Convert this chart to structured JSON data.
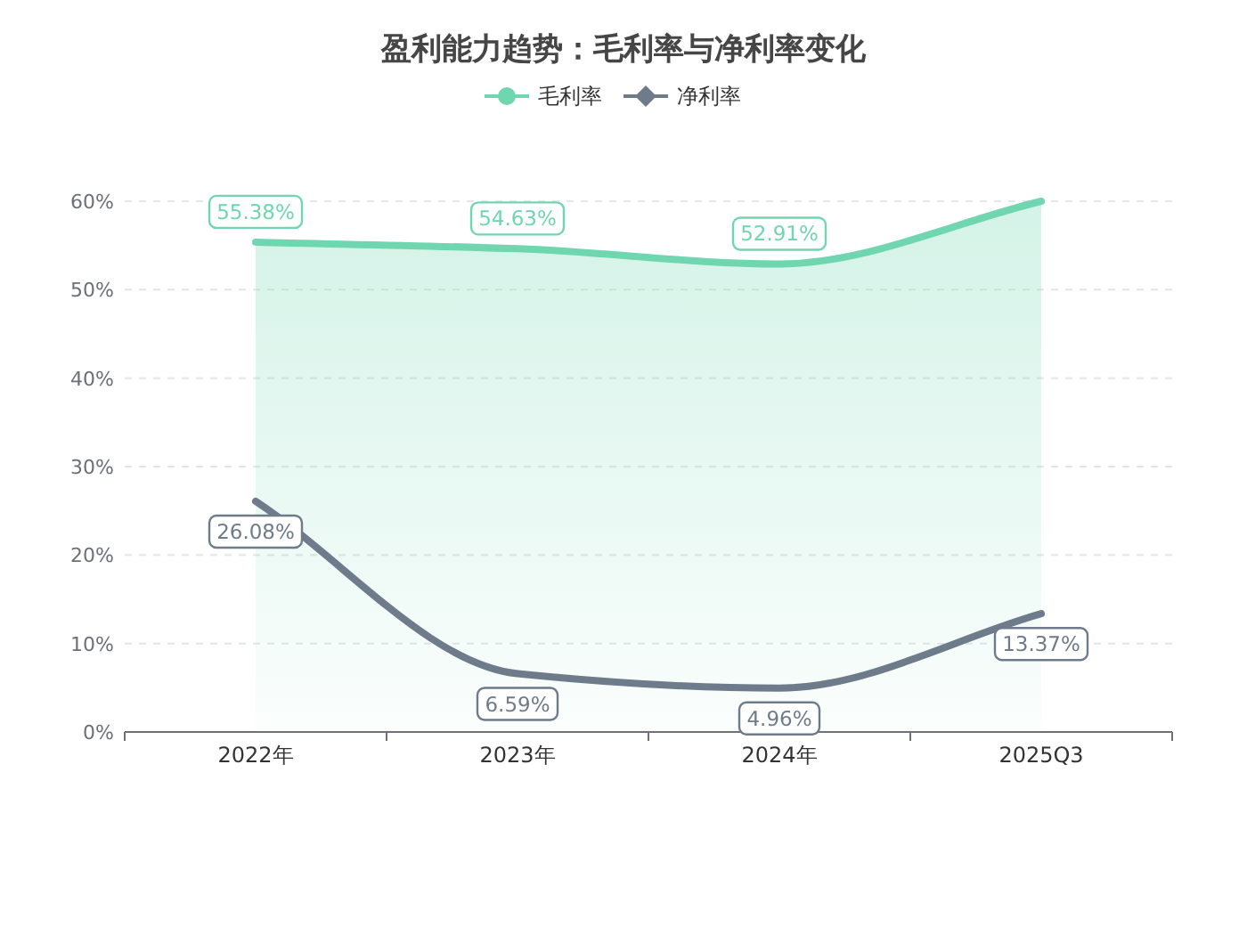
{
  "chart_data": {
    "type": "line",
    "title": "盈利能力趋势：毛利率与净利率变化",
    "categories": [
      "2022年",
      "2023年",
      "2024年",
      "2025Q3"
    ],
    "series": [
      {
        "name": "毛利率",
        "type": "area",
        "color": "#6fd6b0",
        "values": [
          55.38,
          54.63,
          52.91,
          60
        ],
        "value_labels": [
          "55.38%",
          "54.63%",
          "52.91%",
          null
        ]
      },
      {
        "name": "净利率",
        "color": "#6e7b8b",
        "values": [
          26.08,
          6.59,
          4.96,
          13.37
        ],
        "value_labels": [
          "26.08%",
          "6.59%",
          "4.96%",
          "13.37%"
        ]
      }
    ],
    "ylim": [
      0,
      60
    ],
    "yticks": [
      {
        "value": 0,
        "label": "0%"
      },
      {
        "value": 10,
        "label": "10%"
      },
      {
        "value": 20,
        "label": "20%"
      },
      {
        "value": 30,
        "label": "30%"
      },
      {
        "value": 40,
        "label": "40%"
      },
      {
        "value": 50,
        "label": "50%"
      },
      {
        "value": 60,
        "label": "60%"
      }
    ],
    "grid": "y",
    "legend": "top"
  }
}
